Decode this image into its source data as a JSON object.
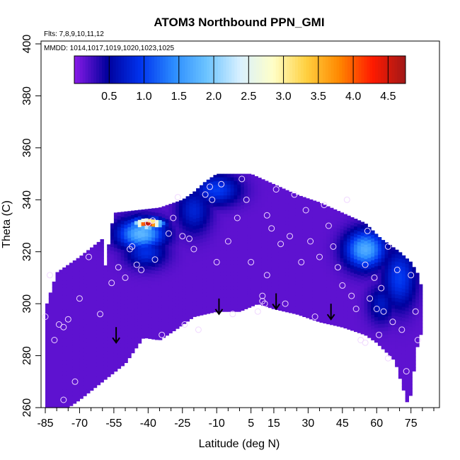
{
  "chart_data": {
    "type": "heatmap",
    "title": "ATOM3 Northbound PPN_GMI",
    "subtitle_flights": "Flts: 7,8,9,10,11,12",
    "subtitle_dates": "MMDD: 1014,1017,1019,1020,1023,1025",
    "xlabel": "Latitude (deg N)",
    "ylabel": "Theta (C)",
    "xlim": [
      -85,
      85
    ],
    "ylim": [
      260,
      400
    ],
    "x_ticks": [
      -85,
      -70,
      -55,
      -40,
      -25,
      -10,
      5,
      15,
      30,
      45,
      60,
      75
    ],
    "x_ticks_minor": [
      -80,
      -75,
      -65,
      -60,
      -50,
      -45,
      -35,
      -30,
      -20,
      -15,
      -5,
      0,
      10,
      20,
      25,
      35,
      40,
      50,
      55,
      65,
      70,
      80,
      85
    ],
    "y_ticks": [
      260,
      280,
      300,
      320,
      340,
      360,
      380,
      400
    ],
    "colorbar": {
      "min": 0.0,
      "max": 4.75,
      "ticks": [
        0.5,
        1.0,
        1.5,
        2.0,
        2.5,
        3.0,
        3.5,
        4.0,
        4.5
      ],
      "tick_labels": [
        "0.5",
        "1.0",
        "1.5",
        "2.0",
        "2.5",
        "3.0",
        "3.5",
        "4.0",
        "4.5"
      ],
      "colors": [
        "#8a1be8",
        "#00009c",
        "#0033ee",
        "#2b8cff",
        "#6cc4ff",
        "#d8f0ff",
        "#ffffc8",
        "#ffd040",
        "#ff8800",
        "#ff1a00",
        "#a01818"
      ]
    },
    "field": {
      "background_value": 0.15,
      "theta_top_by_latitude": [
        [
          -60,
          308
        ],
        [
          -55,
          335
        ],
        [
          -45,
          336
        ],
        [
          -35,
          337
        ],
        [
          -25,
          340
        ],
        [
          -20,
          343
        ],
        [
          -15,
          347
        ],
        [
          -10,
          350
        ],
        [
          5,
          350
        ],
        [
          15,
          346
        ],
        [
          25,
          342
        ],
        [
          35,
          339
        ],
        [
          45,
          335
        ],
        [
          55,
          331
        ],
        [
          62,
          325
        ],
        [
          70,
          320
        ],
        [
          75,
          316
        ],
        [
          79,
          310
        ],
        [
          80,
          300
        ]
      ],
      "theta_bottom_by_latitude": [
        [
          -75,
          260
        ],
        [
          -70,
          263
        ],
        [
          -60,
          270
        ],
        [
          -50,
          277
        ],
        [
          -42,
          287
        ],
        [
          -35,
          286
        ],
        [
          -28,
          290
        ],
        [
          -20,
          295
        ],
        [
          -10,
          297
        ],
        [
          -5,
          297
        ],
        [
          0,
          297
        ],
        [
          8,
          300
        ],
        [
          15,
          298
        ],
        [
          25,
          296
        ],
        [
          35,
          293
        ],
        [
          45,
          291
        ],
        [
          55,
          288
        ],
        [
          60,
          285
        ],
        [
          68,
          278
        ],
        [
          74,
          260
        ],
        [
          78,
          285
        ],
        [
          80,
          290
        ]
      ],
      "features": [
        {
          "lat": -40,
          "theta": 331,
          "value": 4.7,
          "sd_lat": 4,
          "sd_theta": 1.2
        },
        {
          "lat": -43,
          "theta": 327,
          "value": 1.8,
          "sd_lat": 7,
          "sd_theta": 4
        },
        {
          "lat": -41,
          "theta": 320,
          "value": 0.9,
          "sd_lat": 6,
          "sd_theta": 4
        },
        {
          "lat": -20,
          "theta": 336,
          "value": 0.8,
          "sd_lat": 5,
          "sd_theta": 6
        },
        {
          "lat": -10,
          "theta": 344,
          "value": 1.0,
          "sd_lat": 7,
          "sd_theta": 4
        },
        {
          "lat": 55,
          "theta": 321,
          "value": 1.7,
          "sd_lat": 6,
          "sd_theta": 5
        },
        {
          "lat": 70,
          "theta": 310,
          "value": 1.0,
          "sd_lat": 5,
          "sd_theta": 8
        },
        {
          "lat": 62,
          "theta": 300,
          "value": 0.7,
          "sd_lat": 4,
          "sd_theta": 5
        }
      ]
    },
    "observations": [
      [
        -85,
        295
      ],
      [
        -83,
        311
      ],
      [
        -81,
        286
      ],
      [
        -79,
        292
      ],
      [
        -77,
        291
      ],
      [
        -77,
        263
      ],
      [
        -75,
        294
      ],
      [
        -72,
        270
      ],
      [
        -70,
        302
      ],
      [
        -66,
        318
      ],
      [
        -61,
        296
      ],
      [
        -56,
        308
      ],
      [
        -53,
        314
      ],
      [
        -50,
        310
      ],
      [
        -48,
        321
      ],
      [
        -47,
        322
      ],
      [
        -45,
        315
      ],
      [
        -43,
        313
      ],
      [
        -40,
        331
      ],
      [
        -38,
        332
      ],
      [
        -37,
        317
      ],
      [
        -34,
        288
      ],
      [
        -31,
        327
      ],
      [
        -29,
        333
      ],
      [
        -27,
        341
      ],
      [
        -25,
        326
      ],
      [
        -24,
        292
      ],
      [
        -22,
        325
      ],
      [
        -20,
        321
      ],
      [
        -18,
        290
      ],
      [
        -15,
        342
      ],
      [
        -13,
        345
      ],
      [
        -12,
        340
      ],
      [
        -10,
        316
      ],
      [
        -8,
        346
      ],
      [
        -5,
        324
      ],
      [
        -3,
        296
      ],
      [
        -1,
        333
      ],
      [
        1,
        348
      ],
      [
        3,
        340
      ],
      [
        5,
        316
      ],
      [
        8,
        297
      ],
      [
        10,
        303
      ],
      [
        10,
        301
      ],
      [
        11,
        300
      ],
      [
        12,
        311
      ],
      [
        12,
        334
      ],
      [
        14,
        329
      ],
      [
        16,
        344
      ],
      [
        18,
        323
      ],
      [
        20,
        300
      ],
      [
        22,
        326
      ],
      [
        24,
        342
      ],
      [
        27,
        316
      ],
      [
        29,
        336
      ],
      [
        31,
        324
      ],
      [
        33,
        295
      ],
      [
        35,
        318
      ],
      [
        37,
        338
      ],
      [
        39,
        330
      ],
      [
        41,
        322
      ],
      [
        43,
        314
      ],
      [
        45,
        307
      ],
      [
        47,
        340
      ],
      [
        49,
        303
      ],
      [
        51,
        298
      ],
      [
        53,
        286
      ],
      [
        55,
        285
      ],
      [
        55,
        315
      ],
      [
        56,
        328
      ],
      [
        57,
        302
      ],
      [
        59,
        310
      ],
      [
        60,
        298
      ],
      [
        61,
        288
      ],
      [
        62,
        306
      ],
      [
        63,
        297
      ],
      [
        65,
        279
      ],
      [
        67,
        293
      ],
      [
        69,
        313
      ],
      [
        71,
        290
      ],
      [
        73,
        274
      ],
      [
        75,
        311
      ],
      [
        77,
        297
      ],
      [
        78,
        286
      ],
      [
        65,
        322
      ]
    ],
    "arrows_latitude": [
      -54,
      -9,
      16,
      40
    ],
    "arrows_theta_tip": [
      285,
      296,
      298,
      294
    ]
  }
}
